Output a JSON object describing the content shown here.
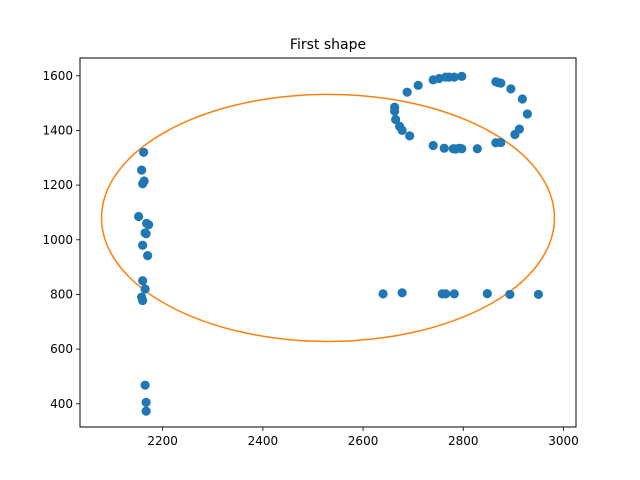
{
  "chart_data": {
    "type": "scatter",
    "title": "First shape",
    "xlabel": "",
    "ylabel": "",
    "xlim": [
      2035,
      3025
    ],
    "ylim": [
      315,
      1665
    ],
    "xticks": [
      2200,
      2400,
      2600,
      2800,
      3000
    ],
    "yticks": [
      400,
      600,
      800,
      1000,
      1200,
      1400,
      1600
    ],
    "grid": false,
    "colors": {
      "points": "#1f77b4",
      "ellipse": "#ff7f0e"
    },
    "series": [
      {
        "type": "scatter",
        "points": [
          [
            2162,
            1320
          ],
          [
            2158,
            1255
          ],
          [
            2160,
            1205
          ],
          [
            2163,
            1215
          ],
          [
            2152,
            1085
          ],
          [
            2168,
            1060
          ],
          [
            2172,
            1055
          ],
          [
            2165,
            1025
          ],
          [
            2167,
            1022
          ],
          [
            2160,
            980
          ],
          [
            2170,
            942
          ],
          [
            2160,
            850
          ],
          [
            2165,
            820
          ],
          [
            2158,
            790
          ],
          [
            2160,
            778
          ],
          [
            2165,
            468
          ],
          [
            2167,
            405
          ],
          [
            2167,
            373
          ],
          [
            2640,
            802
          ],
          [
            2678,
            806
          ],
          [
            2758,
            802
          ],
          [
            2765,
            802
          ],
          [
            2782,
            802
          ],
          [
            2848,
            803
          ],
          [
            2893,
            800
          ],
          [
            2950,
            800
          ],
          [
            2663,
            1485
          ],
          [
            2663,
            1470
          ],
          [
            2665,
            1440
          ],
          [
            2673,
            1415
          ],
          [
            2678,
            1400
          ],
          [
            2693,
            1380
          ],
          [
            2740,
            1345
          ],
          [
            2762,
            1335
          ],
          [
            2780,
            1333
          ],
          [
            2785,
            1332
          ],
          [
            2792,
            1335
          ],
          [
            2797,
            1333
          ],
          [
            2828,
            1333
          ],
          [
            2865,
            1355
          ],
          [
            2875,
            1356
          ],
          [
            2903,
            1385
          ],
          [
            2912,
            1405
          ],
          [
            2928,
            1460
          ],
          [
            2918,
            1515
          ],
          [
            2895,
            1552
          ],
          [
            2865,
            1578
          ],
          [
            2870,
            1575
          ],
          [
            2875,
            1573
          ],
          [
            2688,
            1540
          ],
          [
            2710,
            1565
          ],
          [
            2740,
            1585
          ],
          [
            2752,
            1590
          ],
          [
            2765,
            1595
          ],
          [
            2772,
            1595
          ],
          [
            2782,
            1595
          ],
          [
            2797,
            1598
          ]
        ]
      },
      {
        "type": "ellipse",
        "center": [
          2530,
          1080
        ],
        "rx": 452,
        "ry": 452
      }
    ]
  }
}
